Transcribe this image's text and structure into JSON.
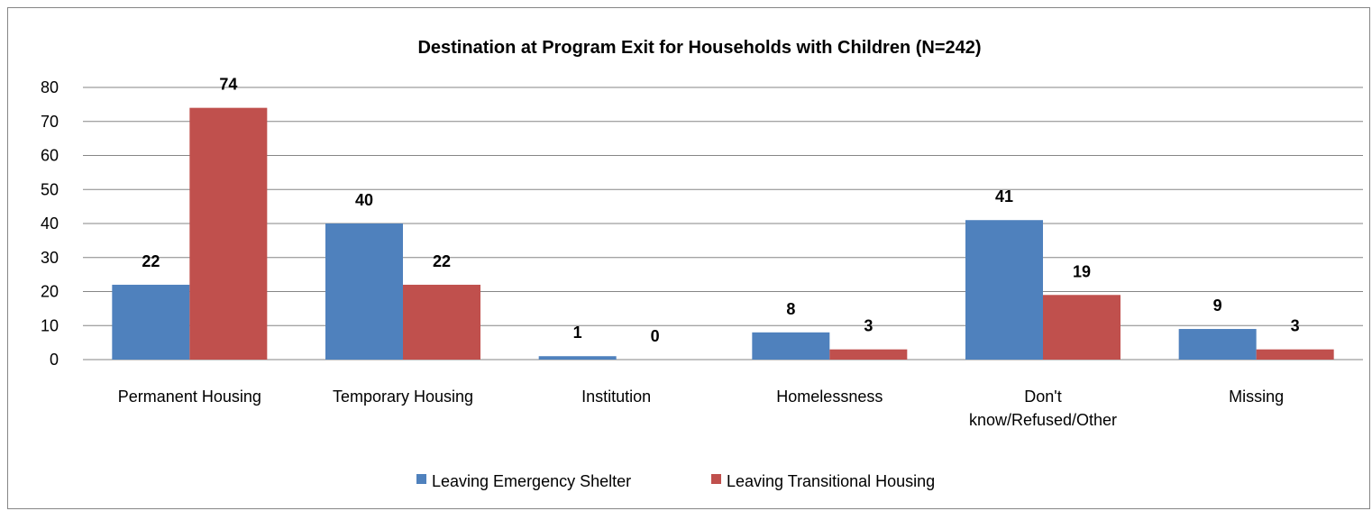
{
  "chart_data": {
    "type": "bar",
    "title": "Destination at Program Exit for Households with Children  (N=242)",
    "categories": [
      [
        "Permanent Housing"
      ],
      [
        "Temporary Housing"
      ],
      [
        "Institution"
      ],
      [
        "Homelessness"
      ],
      [
        "Don't",
        "know/Refused/Other"
      ],
      [
        "Missing"
      ]
    ],
    "series": [
      {
        "name": "Leaving Emergency Shelter",
        "color": "#4F81BD",
        "values": [
          22,
          40,
          1,
          8,
          41,
          9
        ]
      },
      {
        "name": "Leaving Transitional Housing",
        "color": "#C0504D",
        "values": [
          74,
          22,
          0,
          3,
          19,
          3
        ]
      }
    ],
    "ylim": [
      0,
      80
    ],
    "yticks": [
      0,
      10,
      20,
      30,
      40,
      50,
      60,
      70,
      80
    ],
    "xlabel": "",
    "ylabel": "",
    "grid": true,
    "legend": "bottom"
  }
}
